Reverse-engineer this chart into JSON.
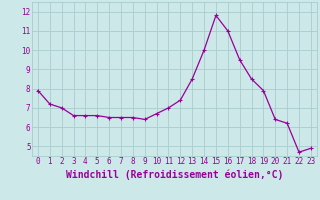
{
  "x": [
    0,
    1,
    2,
    3,
    4,
    5,
    6,
    7,
    8,
    9,
    10,
    11,
    12,
    13,
    14,
    15,
    16,
    17,
    18,
    19,
    20,
    21,
    22,
    23
  ],
  "y": [
    7.9,
    7.2,
    7.0,
    6.6,
    6.6,
    6.6,
    6.5,
    6.5,
    6.5,
    6.4,
    6.7,
    7.0,
    7.4,
    8.5,
    10.0,
    11.8,
    11.0,
    9.5,
    8.5,
    7.9,
    6.4,
    6.2,
    4.7,
    4.9
  ],
  "line_color": "#990099",
  "marker": "+",
  "marker_size": 3,
  "marker_lw": 0.8,
  "bg_color": "#cce8e8",
  "grid_color": "#aacccc",
  "xlabel": "Windchill (Refroidissement éolien,°C)",
  "ylim": [
    4.5,
    12.5
  ],
  "xlim": [
    -0.5,
    23.5
  ],
  "yticks": [
    5,
    6,
    7,
    8,
    9,
    10,
    11,
    12
  ],
  "xticks": [
    0,
    1,
    2,
    3,
    4,
    5,
    6,
    7,
    8,
    9,
    10,
    11,
    12,
    13,
    14,
    15,
    16,
    17,
    18,
    19,
    20,
    21,
    22,
    23
  ],
  "tick_color": "#990099",
  "tick_fontsize": 5.5,
  "xlabel_fontsize": 7.0,
  "xlabel_color": "#990099",
  "line_width": 0.9
}
